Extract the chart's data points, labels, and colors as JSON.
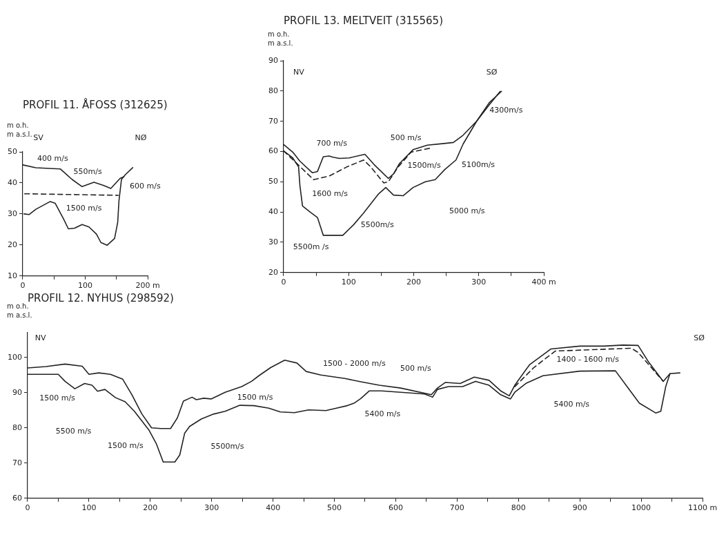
{
  "chart_data": [
    {
      "type": "line",
      "title": "PROFIL 11. ÅFOSS (312625)",
      "ylabel": "m o.h.\nm a.s.l.",
      "xlim": [
        0,
        200
      ],
      "ylim": [
        10,
        50
      ],
      "xticks": [
        0,
        {
          "value": 50,
          "label": null
        },
        100,
        {
          "value": 150,
          "label": null
        },
        {
          "value": 200,
          "label": "200 m"
        }
      ],
      "yticks": [
        10,
        20,
        30,
        40,
        50
      ],
      "grid": false,
      "legend": false,
      "marker": "none",
      "series": [
        {
          "color": "#222222",
          "line_style": "solid",
          "x": [
            0,
            21,
            60,
            79,
            95,
            114,
            129,
            141,
            156,
            162
          ],
          "values": [
            45.8,
            44.9,
            44.5,
            41.1,
            38.8,
            40.2,
            39.2,
            38.2,
            41.5,
            42
          ]
        },
        {
          "color": "#222222",
          "line_style": "dashed",
          "x": [
            3,
            153
          ],
          "values": [
            36.5,
            36
          ]
        },
        {
          "color": "#222222",
          "line_style": "solid",
          "x": [
            2,
            10,
            21,
            44,
            52,
            65,
            73,
            83,
            95,
            106,
            118,
            125,
            135,
            147,
            152,
            154,
            158,
            164,
            176
          ],
          "values": [
            30,
            29.8,
            31.5,
            34,
            33.4,
            28.5,
            25.2,
            25.4,
            26.6,
            25.8,
            23.5,
            20.8,
            19.9,
            22.1,
            27.3,
            34.2,
            41.1,
            42.6,
            44.9
          ]
        }
      ],
      "annotations": [
        "SV",
        "NØ",
        "400 m/s",
        "550m/s",
        "600 m/s",
        "1500 m/s"
      ]
    },
    {
      "type": "line",
      "title": "PROFIL 13. MELTVEIT (315565)",
      "ylabel": "m o.h.\nm a.s.l.",
      "xlim": [
        0,
        400
      ],
      "ylim": [
        20,
        90
      ],
      "xticks": [
        0,
        {
          "value": 50,
          "label": null
        },
        100,
        {
          "value": 150,
          "label": null
        },
        200,
        {
          "value": 250,
          "label": null
        },
        300,
        {
          "value": 350,
          "label": null
        },
        {
          "value": 400,
          "label": "400 m"
        }
      ],
      "yticks": [
        20,
        30,
        40,
        50,
        60,
        70,
        80,
        90
      ],
      "grid": false,
      "legend": false,
      "marker": "none",
      "series": [
        {
          "color": "#222222",
          "line_style": "solid",
          "x": [
            0,
            14,
            25,
            44,
            52,
            61,
            70,
            76,
            86,
            101,
            125,
            139,
            161,
            169,
            178,
            199,
            221,
            244,
            261,
            276,
            297,
            316,
            335
          ],
          "values": [
            62.3,
            59.8,
            56.8,
            53,
            53.4,
            58.3,
            58.5,
            58.1,
            57.7,
            57.9,
            59.1,
            55.7,
            51.1,
            52.6,
            56,
            60.6,
            62.1,
            62.6,
            63,
            65.4,
            70.1,
            76.1,
            79.9
          ]
        },
        {
          "color": "#222222",
          "line_style": "dashed",
          "x": [
            0,
            22,
            33,
            46,
            70,
            97,
            123,
            134,
            154,
            161,
            176,
            196,
            225
          ],
          "values": [
            60.2,
            55.7,
            53.4,
            50.7,
            51.9,
            54.9,
            57.2,
            54.9,
            49.6,
            50,
            54.9,
            59.8,
            61.1
          ]
        },
        {
          "color": "#222222",
          "line_style": "solid",
          "x": [
            0,
            14,
            23,
            25,
            29,
            40,
            52,
            61,
            91,
            108,
            123,
            146,
            157,
            169,
            184,
            199,
            218,
            233,
            248,
            265,
            276,
            297,
            316,
            333
          ],
          "values": [
            60.2,
            57.9,
            54.9,
            48.8,
            42,
            40.1,
            38.2,
            32.3,
            32.3,
            35.9,
            39.7,
            46,
            48.1,
            45.6,
            45.4,
            48.1,
            50,
            50.7,
            54.1,
            57.2,
            62.5,
            70.1,
            75.4,
            79.9
          ]
        }
      ],
      "annotations": [
        "NV",
        "SØ",
        "700 m/s",
        "500 m/s",
        "1500m/s",
        "5100m/s",
        "4300m/s",
        "1600 m/s",
        "5000 m/s",
        "5500m/s",
        "5500m /s"
      ]
    },
    {
      "type": "line",
      "title": "PROFIL 12. NYHUS (298592)",
      "ylabel": "m o.h.\nm a.s.l.",
      "xlim": [
        0,
        1100
      ],
      "ylim": [
        60,
        107
      ],
      "xticks": [
        0,
        {
          "value": 50,
          "label": null
        },
        100,
        {
          "value": 150,
          "label": null
        },
        200,
        {
          "value": 250,
          "label": null
        },
        300,
        {
          "value": 350,
          "label": null
        },
        400,
        {
          "value": 450,
          "label": null
        },
        500,
        {
          "value": 550,
          "label": null
        },
        600,
        {
          "value": 650,
          "label": null
        },
        700,
        {
          "value": 750,
          "label": null
        },
        800,
        {
          "value": 850,
          "label": null
        },
        900,
        {
          "value": 950,
          "label": null
        },
        1000,
        {
          "value": 1050,
          "label": null
        },
        {
          "value": 1100,
          "label": "1100 m"
        }
      ],
      "yticks": [
        60,
        70,
        80,
        90,
        100
      ],
      "grid": false,
      "legend": false,
      "marker": "none",
      "series": [
        {
          "color": "#222222",
          "line_style": "solid",
          "x": [
            0,
            30,
            61,
            89,
            100,
            116,
            135,
            155,
            170,
            186,
            202,
            217,
            233,
            244,
            254,
            268,
            275,
            287,
            299,
            322,
            349,
            365,
            377,
            396,
            419,
            439,
            454,
            478,
            517,
            543,
            573,
            608,
            658,
            668,
            681,
            705,
            728,
            752,
            771,
            785,
            794,
            818,
            853,
            900,
            939,
            970,
            995,
            1012,
            1036,
            1047,
            1063
          ],
          "values": [
            97,
            97.4,
            98.1,
            97.5,
            95.2,
            95.6,
            95.2,
            93.8,
            89.4,
            84,
            80,
            79.8,
            79.8,
            82.8,
            87.6,
            88.7,
            88,
            88.4,
            88.2,
            90.1,
            91.7,
            93.2,
            94.8,
            97.1,
            99.2,
            98.4,
            96,
            95,
            94,
            93.1,
            92.1,
            91.3,
            89.4,
            91.3,
            92.9,
            92.6,
            94.4,
            93.5,
            90.5,
            89.1,
            92.1,
            97.9,
            102.4,
            103.2,
            103.2,
            103.5,
            103.4,
            98.7,
            93.2,
            95.4,
            95.6
          ]
        },
        {
          "color": "#222222",
          "line_style": "dashed",
          "x": [
            794,
            825,
            860,
            984,
            995,
            1036
          ],
          "values": [
            91.7,
            97.1,
            101.8,
            102.6,
            101.4,
            93.2
          ]
        },
        {
          "color": "#222222",
          "line_style": "solid",
          "x": [
            0,
            50,
            61,
            77,
            93,
            105,
            114,
            126,
            143,
            159,
            174,
            198,
            210,
            221,
            240,
            248,
            256,
            264,
            283,
            303,
            322,
            346,
            369,
            393,
            412,
            435,
            458,
            486,
            501,
            521,
            532,
            543,
            557,
            577,
            608,
            647,
            660,
            668,
            686,
            709,
            730,
            752,
            771,
            787,
            794,
            813,
            840,
            900,
            958,
            977,
            997,
            1024,
            1032,
            1040,
            1047
          ],
          "values": [
            95.2,
            95.2,
            93.2,
            91.1,
            92.6,
            92.1,
            90.4,
            90.9,
            88.6,
            87.4,
            84.7,
            79.3,
            75.4,
            70.3,
            70.3,
            72.3,
            78.5,
            80.4,
            82.5,
            83.9,
            84.7,
            86.4,
            86.3,
            85.6,
            84.5,
            84.3,
            85.1,
            84.9,
            85.5,
            86.3,
            87,
            88.3,
            90.5,
            90.5,
            90.1,
            89.6,
            88.7,
            90.9,
            91.7,
            91.7,
            93.2,
            92.1,
            89.4,
            88.2,
            90.1,
            92.7,
            94.8,
            96.1,
            96.2,
            91.7,
            87,
            84.2,
            84.7,
            91.7,
            95.4
          ]
        }
      ],
      "annotations": [
        "NV",
        "SØ",
        "1500 m/s",
        "5500 m/s",
        "1500 m/s",
        "5500m/s",
        "1500 m/s",
        "1500 - 2000 m/s",
        "500 m/s",
        "5400 m/s",
        "5400 m/s",
        "1400 - 1600 m/s"
      ]
    }
  ]
}
